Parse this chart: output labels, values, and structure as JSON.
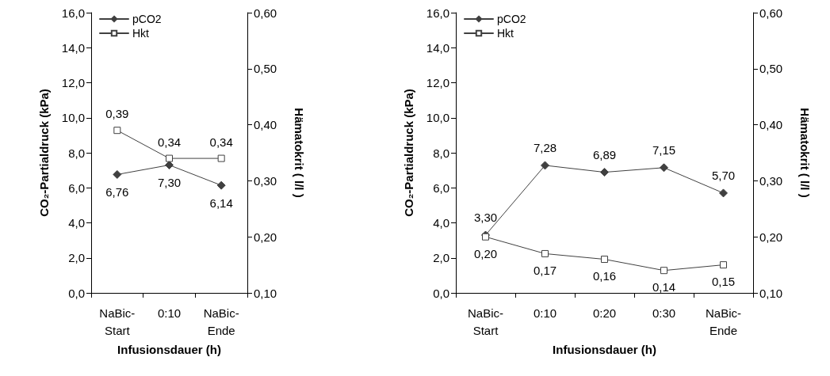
{
  "chart_data": [
    {
      "type": "line",
      "categories": [
        "NaBic-\nStart",
        "0:10",
        "NaBic-\nEnde"
      ],
      "xlabel": "Infusionsdauer (h)",
      "ylabel": "CO₂-Partialdruck (kPa)",
      "y2label": "Hämatokrit ( l/l )",
      "ylim": [
        0,
        16
      ],
      "yticks": [
        {
          "value": 0,
          "label": "0,0"
        },
        {
          "value": 2,
          "label": "2,0"
        },
        {
          "value": 4,
          "label": "4,0"
        },
        {
          "value": 6,
          "label": "6,0"
        },
        {
          "value": 8,
          "label": "8,0"
        },
        {
          "value": 10,
          "label": "10,0"
        },
        {
          "value": 12,
          "label": "12,0"
        },
        {
          "value": 14,
          "label": "14,0"
        },
        {
          "value": 16,
          "label": "16,0"
        }
      ],
      "y2lim": [
        0.1,
        0.6
      ],
      "y2ticks": [
        {
          "value": 0.1,
          "label": "0,10"
        },
        {
          "value": 0.2,
          "label": "0,20"
        },
        {
          "value": 0.3,
          "label": "0,30"
        },
        {
          "value": 0.4,
          "label": "0,40"
        },
        {
          "value": 0.5,
          "label": "0,50"
        },
        {
          "value": 0.6,
          "label": "0,60"
        }
      ],
      "grid": false,
      "legend": "top left",
      "series": [
        {
          "name": "pCO2",
          "color": "#404040",
          "marker": "diamond",
          "values": [
            6.76,
            7.3,
            6.14
          ],
          "value_labels": [
            "6,76",
            "7,30",
            "6,14"
          ]
        },
        {
          "name": "Hkt",
          "color": "#404040",
          "marker": "square",
          "axis": "y2",
          "values": [
            0.39,
            0.34,
            0.34
          ],
          "value_labels": [
            "0,39",
            "0,34",
            "0,34"
          ]
        }
      ]
    },
    {
      "type": "line",
      "categories": [
        "NaBic-\nStart",
        "0:10",
        "0:20",
        "0:30",
        "NaBic-\nEnde"
      ],
      "xlabel": "Infusionsdauer (h)",
      "ylabel": "CO₂-Partialdruck (kPa)",
      "y2label": "Hämatokrit ( l/l )",
      "ylim": [
        0,
        16
      ],
      "yticks": [
        {
          "value": 0,
          "label": "0,0"
        },
        {
          "value": 2,
          "label": "2,0"
        },
        {
          "value": 4,
          "label": "4,0"
        },
        {
          "value": 6,
          "label": "6,0"
        },
        {
          "value": 8,
          "label": "8,0"
        },
        {
          "value": 10,
          "label": "10,0"
        },
        {
          "value": 12,
          "label": "12,0"
        },
        {
          "value": 14,
          "label": "14,0"
        },
        {
          "value": 16,
          "label": "16,0"
        }
      ],
      "y2lim": [
        0.1,
        0.6
      ],
      "y2ticks": [
        {
          "value": 0.1,
          "label": "0,10"
        },
        {
          "value": 0.2,
          "label": "0,20"
        },
        {
          "value": 0.3,
          "label": "0,30"
        },
        {
          "value": 0.4,
          "label": "0,40"
        },
        {
          "value": 0.5,
          "label": "0,50"
        },
        {
          "value": 0.6,
          "label": "0,60"
        }
      ],
      "grid": false,
      "legend": "top left",
      "series": [
        {
          "name": "pCO2",
          "color": "#404040",
          "marker": "diamond",
          "values": [
            3.3,
            7.28,
            6.89,
            7.15,
            5.7
          ],
          "value_labels": [
            "3,30",
            "7,28",
            "6,89",
            "7,15",
            "5,70"
          ]
        },
        {
          "name": "Hkt",
          "color": "#404040",
          "marker": "square",
          "axis": "y2",
          "values": [
            0.2,
            0.17,
            0.16,
            0.14,
            0.15
          ],
          "value_labels": [
            "0,20",
            "0,17",
            "0,16",
            "0,14",
            "0,15"
          ]
        }
      ]
    }
  ]
}
